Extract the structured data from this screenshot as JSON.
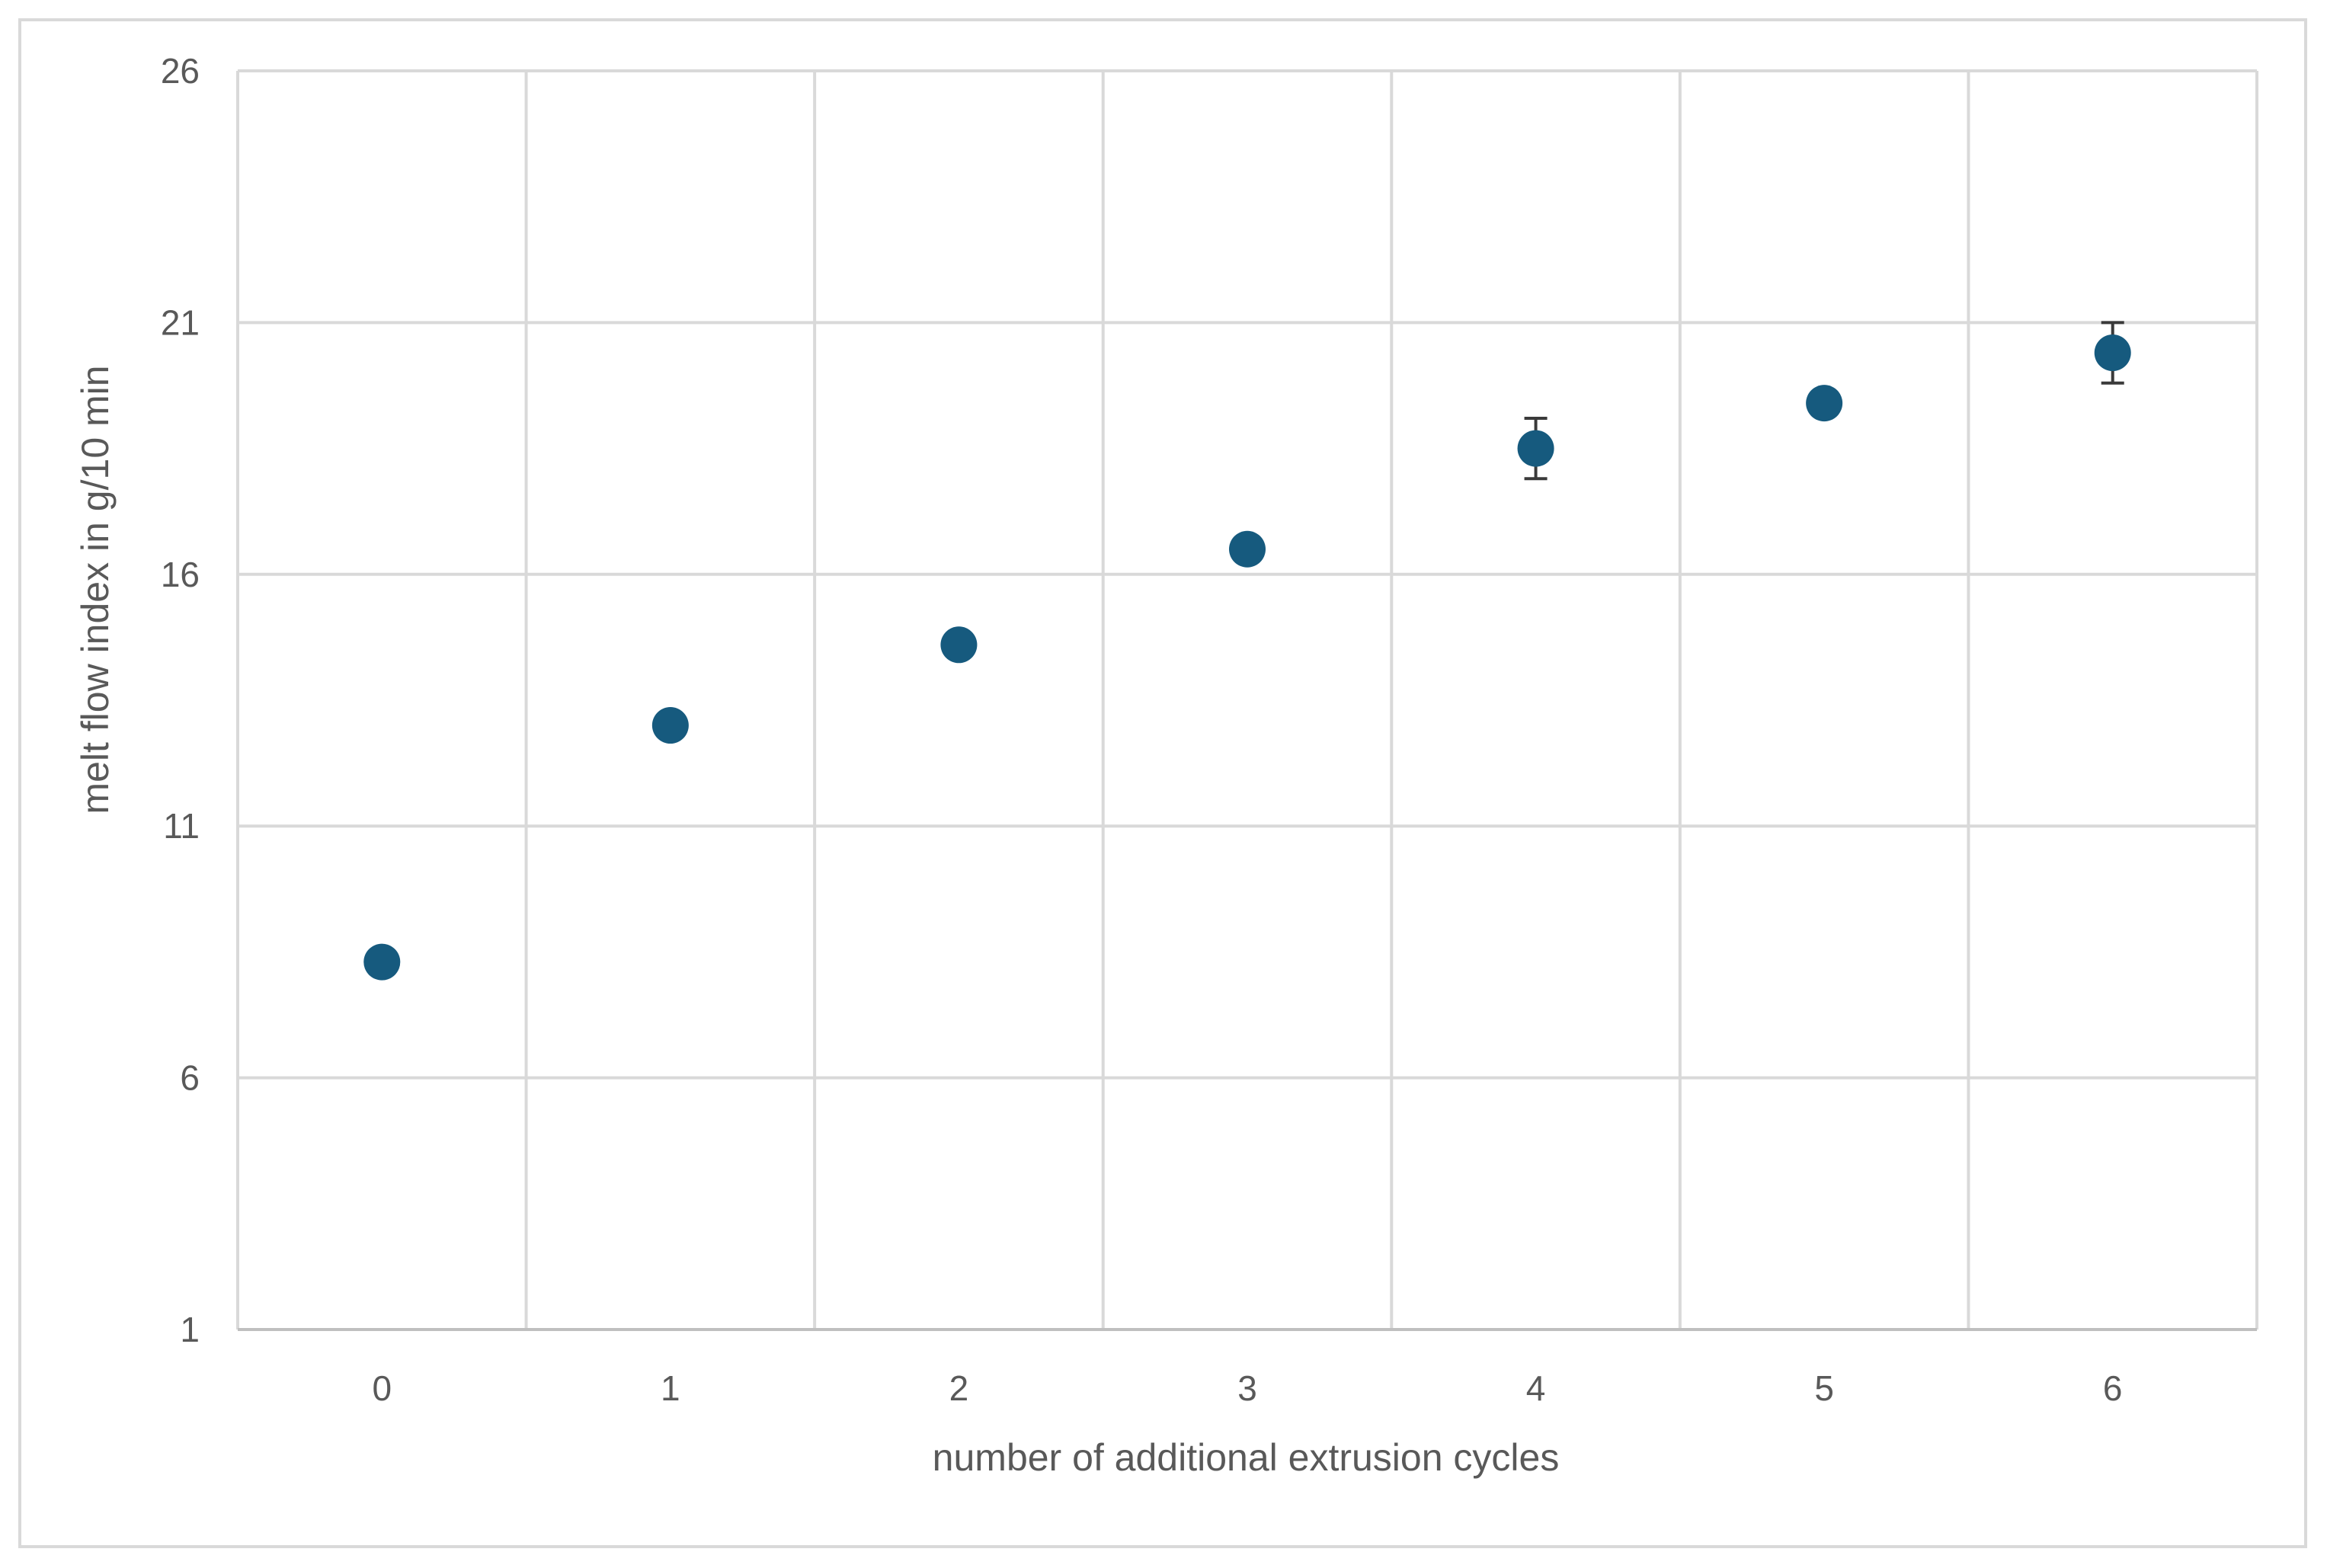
{
  "chart_data": {
    "type": "scatter",
    "xlabel": "number of additional extrusion cycles",
    "ylabel": "melt flow index in g/10 min",
    "xlim": [
      -0.5,
      6.5
    ],
    "ylim": [
      1,
      26
    ],
    "x_ticks": [
      "0",
      "1",
      "2",
      "3",
      "4",
      "5",
      "6"
    ],
    "y_ticks": [
      "1",
      "6",
      "11",
      "16",
      "21",
      "26"
    ],
    "grid": true,
    "legend": "none",
    "marker_color": "#165a7e",
    "series": [
      {
        "x": [
          0,
          1,
          2,
          3,
          4,
          5,
          6
        ],
        "y": [
          8.3,
          13.0,
          14.6,
          16.5,
          18.5,
          19.4,
          20.4
        ],
        "error": [
          0.0,
          0.0,
          0.0,
          0.2,
          0.6,
          0.0,
          0.6
        ]
      }
    ]
  }
}
